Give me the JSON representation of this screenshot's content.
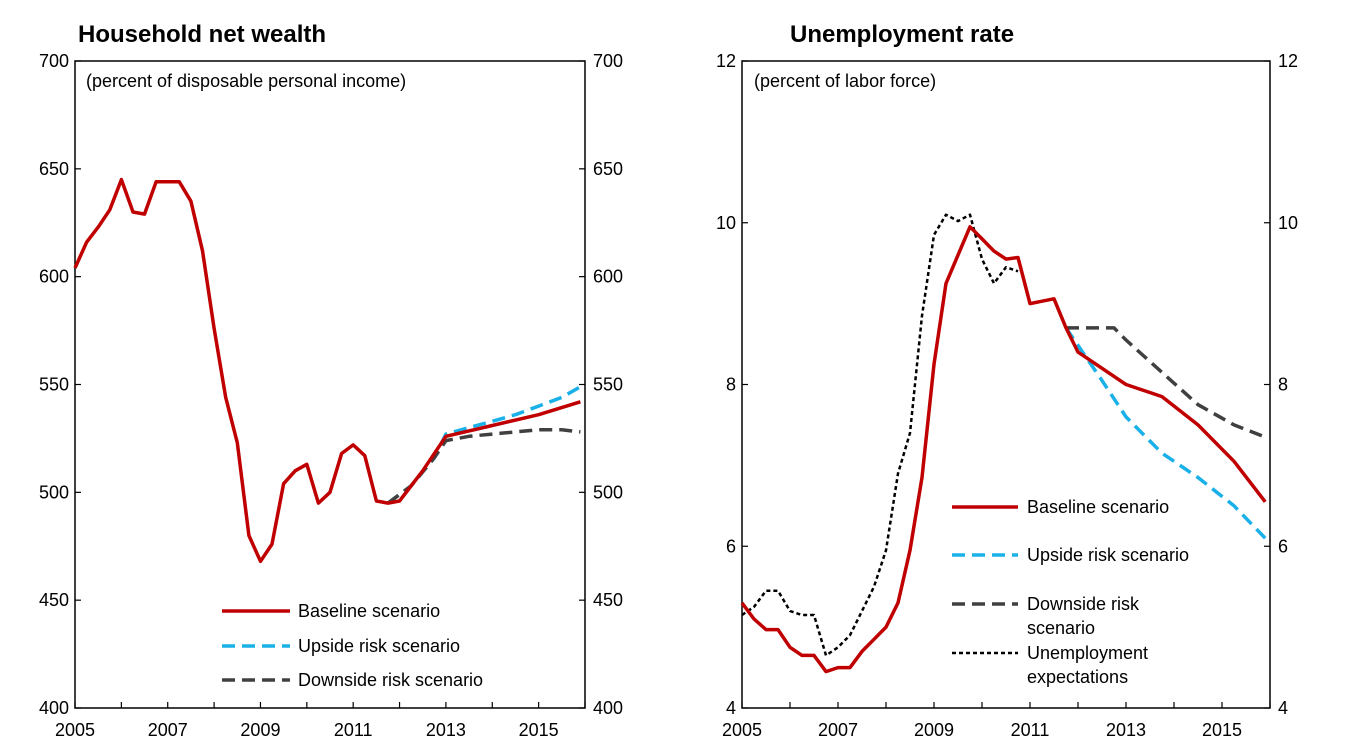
{
  "chart_data": [
    {
      "type": "line",
      "title": "Household net wealth",
      "subtitle": "(percent of disposable personal income)",
      "xlim": [
        2005,
        2016
      ],
      "ylim": [
        400,
        700
      ],
      "x_ticks": [
        "2005",
        "2007",
        "2009",
        "2011",
        "2013",
        "2015"
      ],
      "y_ticks": [
        "400",
        "450",
        "500",
        "550",
        "600",
        "650",
        "700"
      ],
      "legend_placement": "bottom-center",
      "series": [
        {
          "name": "Baseline scenario",
          "color": "#c00000",
          "style": "solid",
          "x": [
            2005.0,
            2005.25,
            2005.5,
            2005.75,
            2006.0,
            2006.25,
            2006.5,
            2006.75,
            2007.0,
            2007.25,
            2007.5,
            2007.75,
            2008.0,
            2008.25,
            2008.5,
            2008.75,
            2009.0,
            2009.25,
            2009.5,
            2009.75,
            2010.0,
            2010.25,
            2010.5,
            2010.75,
            2011.0,
            2011.25,
            2011.5,
            2011.75,
            2012.0,
            2012.5,
            2013.0,
            2014.0,
            2015.0,
            2015.9
          ],
          "y": [
            604,
            616,
            623,
            631,
            645,
            630,
            629,
            644,
            644,
            644,
            635,
            612,
            576,
            544,
            523,
            480,
            468,
            476,
            504,
            510,
            513,
            495,
            500,
            518,
            522,
            517,
            496,
            495,
            496,
            510,
            526,
            531,
            536,
            542
          ]
        },
        {
          "name": "Upside risk scenario",
          "color": "#1ab0e8",
          "style": "dashed",
          "x": [
            2011.75,
            2012.25,
            2012.75,
            2013.0,
            2013.5,
            2014.0,
            2014.5,
            2015.0,
            2015.5,
            2015.9
          ],
          "y": [
            495,
            503,
            516,
            527,
            530,
            533,
            536,
            540,
            544,
            549
          ]
        },
        {
          "name": "Downside risk scenario",
          "color": "#404040",
          "style": "dashed",
          "x": [
            2011.75,
            2012.25,
            2012.75,
            2013.0,
            2013.5,
            2014.0,
            2014.5,
            2015.0,
            2015.5,
            2015.9
          ],
          "y": [
            495,
            503,
            516,
            524,
            526,
            527,
            528,
            529,
            529,
            528
          ]
        }
      ]
    },
    {
      "type": "line",
      "title": "Unemployment rate",
      "subtitle": "(percent of labor force)",
      "xlim": [
        2005,
        2016
      ],
      "ylim": [
        4,
        12
      ],
      "x_ticks": [
        "2005",
        "2007",
        "2009",
        "2011",
        "2013",
        "2015"
      ],
      "y_ticks": [
        "4",
        "6",
        "8",
        "10",
        "12"
      ],
      "legend_placement": "bottom-right",
      "series": [
        {
          "name": "Baseline scenario",
          "color": "#c00000",
          "style": "solid",
          "x": [
            2005.0,
            2005.25,
            2005.5,
            2005.75,
            2006.0,
            2006.25,
            2006.5,
            2006.75,
            2007.0,
            2007.25,
            2007.5,
            2007.75,
            2008.0,
            2008.25,
            2008.5,
            2008.75,
            2009.0,
            2009.25,
            2009.5,
            2009.75,
            2010.0,
            2010.25,
            2010.5,
            2010.75,
            2011.0,
            2011.25,
            2011.5,
            2011.75,
            2012.0,
            2012.25,
            2013.0,
            2013.75,
            2014.5,
            2015.25,
            2015.9
          ],
          "y": [
            5.3,
            5.1,
            4.97,
            4.97,
            4.75,
            4.65,
            4.65,
            4.45,
            4.5,
            4.5,
            4.7,
            4.85,
            5.0,
            5.3,
            5.95,
            6.85,
            8.25,
            9.25,
            9.6,
            9.95,
            9.8,
            9.65,
            9.55,
            9.57,
            9.0,
            9.03,
            9.06,
            8.7,
            8.4,
            8.3,
            8.0,
            7.85,
            7.5,
            7.05,
            6.55
          ]
        },
        {
          "name": "Upside risk scenario",
          "color": "#1ab0e8",
          "style": "dashed",
          "x": [
            2011.75,
            2012.5,
            2013.0,
            2013.75,
            2014.5,
            2015.25,
            2015.9
          ],
          "y": [
            8.7,
            8.05,
            7.6,
            7.15,
            6.85,
            6.5,
            6.1
          ]
        },
        {
          "name": "Downside risk scenario",
          "color": "#404040",
          "style": "dashed",
          "x": [
            2011.75,
            2012.25,
            2012.75,
            2013.0,
            2013.75,
            2014.5,
            2015.25,
            2015.9
          ],
          "y": [
            8.7,
            8.7,
            8.7,
            8.55,
            8.15,
            7.75,
            7.5,
            7.35
          ]
        },
        {
          "name": "Unemployment expectations",
          "color": "#000000",
          "style": "dotted",
          "x": [
            2005.0,
            2005.25,
            2005.5,
            2005.75,
            2006.0,
            2006.25,
            2006.5,
            2006.75,
            2007.0,
            2007.25,
            2007.5,
            2007.75,
            2008.0,
            2008.25,
            2008.5,
            2008.75,
            2009.0,
            2009.25,
            2009.5,
            2009.75,
            2010.0,
            2010.25,
            2010.5,
            2010.75
          ],
          "y": [
            5.15,
            5.25,
            5.45,
            5.45,
            5.2,
            5.15,
            5.15,
            4.65,
            4.75,
            4.9,
            5.2,
            5.5,
            5.95,
            6.9,
            7.4,
            8.85,
            9.85,
            10.1,
            10.02,
            10.1,
            9.55,
            9.25,
            9.45,
            9.4
          ]
        }
      ],
      "legend_entries": [
        {
          "label_lines": [
            "Baseline scenario"
          ],
          "series": 0
        },
        {
          "label_lines": [
            "Upside risk scenario"
          ],
          "series": 1
        },
        {
          "label_lines": [
            "Downside risk",
            "scenario"
          ],
          "series": 2
        },
        {
          "label_lines": [
            "Unemployment",
            "expectations"
          ],
          "series": 3
        }
      ]
    }
  ]
}
